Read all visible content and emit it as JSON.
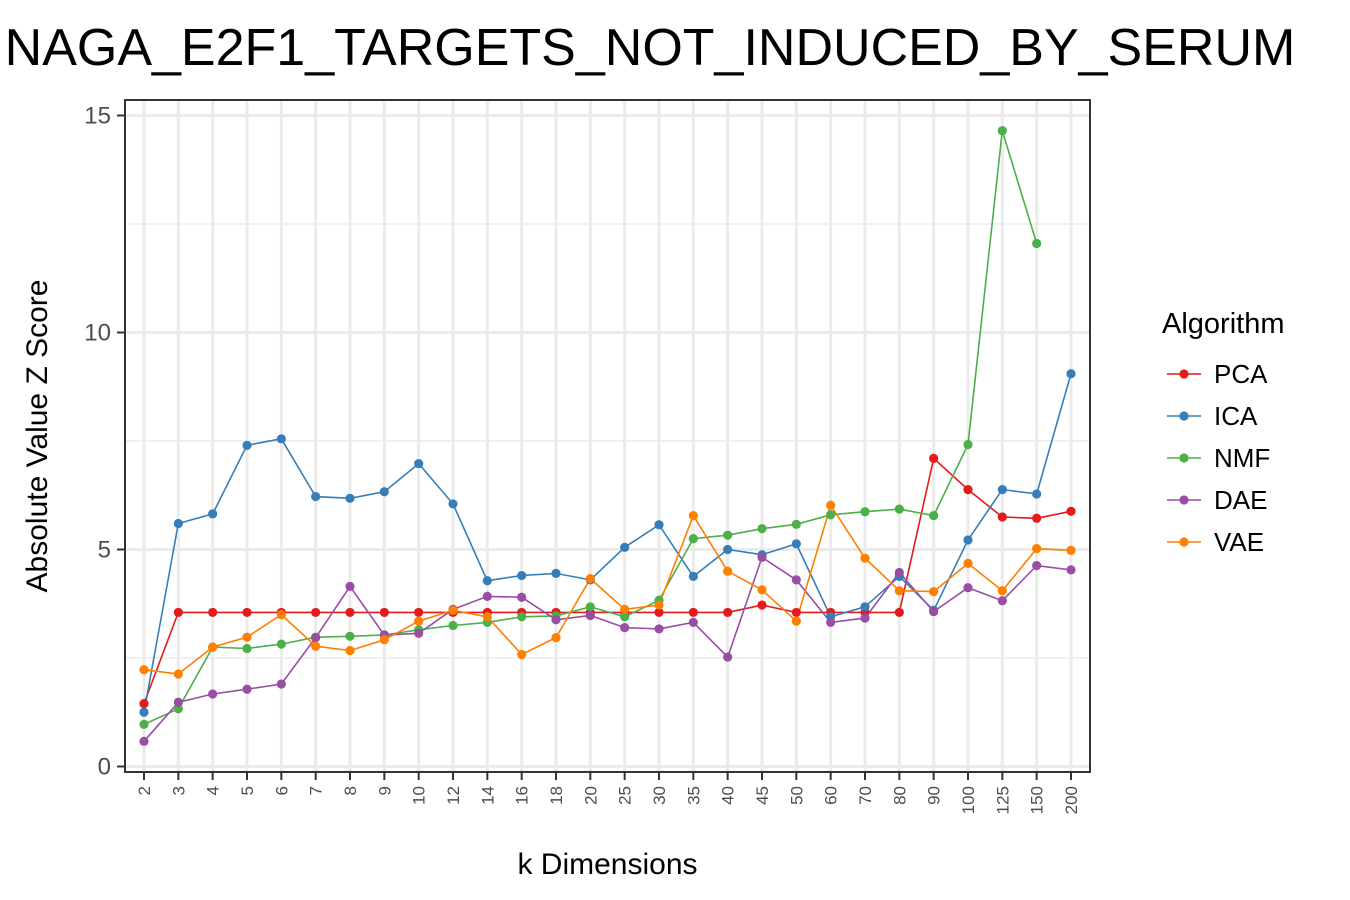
{
  "chart_data": {
    "type": "line",
    "title": "NAGA_E2F1_TARGETS_NOT_INDUCED_BY_SERUM",
    "xlabel": "k Dimensions",
    "ylabel": "Absolute Value Z Score",
    "ylim": [
      0,
      15.5
    ],
    "yticks": [
      "0",
      "5",
      "10",
      "15"
    ],
    "grid": true,
    "legend_title": "Algorithm",
    "legend_position": "right",
    "categories": [
      "2",
      "3",
      "4",
      "5",
      "6",
      "7",
      "8",
      "9",
      "10",
      "12",
      "14",
      "16",
      "18",
      "20",
      "25",
      "30",
      "35",
      "40",
      "45",
      "50",
      "60",
      "70",
      "80",
      "90",
      "100",
      "125",
      "150",
      "200"
    ],
    "series": [
      {
        "name": "PCA",
        "color": "#e41a1c",
        "values": [
          1.45,
          3.55,
          3.55,
          3.55,
          3.55,
          3.55,
          3.55,
          3.55,
          3.55,
          3.55,
          3.55,
          3.55,
          3.55,
          3.55,
          3.55,
          3.55,
          3.55,
          3.55,
          3.72,
          3.55,
          3.55,
          3.55,
          3.55,
          7.1,
          6.38,
          5.75,
          5.72,
          5.88
        ]
      },
      {
        "name": "ICA",
        "color": "#377eb8",
        "values": [
          1.25,
          5.6,
          5.82,
          7.4,
          7.55,
          6.22,
          6.18,
          6.33,
          6.98,
          6.05,
          4.28,
          4.4,
          4.45,
          4.3,
          5.05,
          5.57,
          4.38,
          5.0,
          4.88,
          5.13,
          3.45,
          3.68,
          4.38,
          3.6,
          5.22,
          6.38,
          6.28,
          9.05
        ]
      },
      {
        "name": "NMF",
        "color": "#4daf4a",
        "values": [
          0.97,
          1.33,
          2.75,
          2.72,
          2.82,
          2.98,
          3.0,
          3.03,
          3.15,
          3.25,
          3.32,
          3.45,
          3.47,
          3.68,
          3.45,
          3.83,
          5.25,
          5.33,
          5.48,
          5.58,
          5.8,
          5.87,
          5.93,
          5.78,
          7.42,
          14.65,
          12.05,
          null
        ]
      },
      {
        "name": "DAE",
        "color": "#984ea3",
        "values": [
          0.58,
          1.48,
          1.67,
          1.78,
          1.9,
          2.97,
          4.15,
          3.03,
          3.07,
          3.62,
          3.92,
          3.9,
          3.38,
          3.48,
          3.2,
          3.17,
          3.32,
          2.52,
          4.82,
          4.3,
          3.32,
          3.42,
          4.47,
          3.57,
          4.12,
          3.82,
          4.63,
          4.53
        ]
      },
      {
        "name": "VAE",
        "color": "#ff7f00",
        "values": [
          2.23,
          2.13,
          2.75,
          2.98,
          3.5,
          2.77,
          2.67,
          2.92,
          3.35,
          3.6,
          3.45,
          2.58,
          2.97,
          4.33,
          3.62,
          3.72,
          5.78,
          4.5,
          4.07,
          3.35,
          6.02,
          4.8,
          4.05,
          4.03,
          4.68,
          4.05,
          5.02,
          4.98
        ]
      }
    ]
  }
}
